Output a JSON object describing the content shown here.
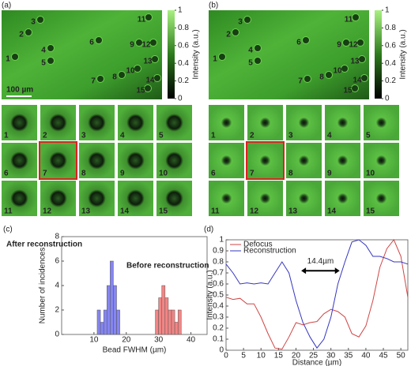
{
  "panel_a": {
    "label": "(a)",
    "bead_labels": [
      "1",
      "2",
      "3",
      "4",
      "5",
      "6",
      "7",
      "8",
      "9",
      "10",
      "11",
      "12",
      "13",
      "14",
      "15"
    ],
    "scale_bar": "100 µm",
    "colorbar": {
      "label": "Intensity (a.u.)",
      "ticks": [
        0,
        0.2,
        0.4,
        0.6,
        0.8,
        1
      ]
    },
    "tile_labels": [
      "1",
      "2",
      "3",
      "4",
      "5",
      "6",
      "7",
      "8",
      "9",
      "10",
      "11",
      "12",
      "13",
      "14",
      "15"
    ]
  },
  "panel_b": {
    "label": "(b)",
    "bead_labels": [
      "1",
      "2",
      "3",
      "4",
      "5",
      "6",
      "7",
      "8",
      "9",
      "10",
      "11",
      "12",
      "13",
      "14",
      "15"
    ],
    "colorbar": {
      "label": "Intensity (a.u.)",
      "ticks": [
        0,
        0.2,
        0.4,
        0.6,
        0.8,
        1
      ]
    },
    "tile_labels": [
      "1",
      "2",
      "3",
      "4",
      "5",
      "6",
      "7",
      "8",
      "9",
      "10",
      "11",
      "12",
      "13",
      "14",
      "15"
    ]
  },
  "chart_data": [
    {
      "type": "histogram",
      "panel_label": "(c)",
      "xlabel": "Bead FWHM (µm)",
      "ylabel": "Number of incidences",
      "xlim": [
        0,
        45
      ],
      "ylim": [
        0,
        8
      ],
      "xticks": [
        10,
        20,
        30,
        40
      ],
      "yticks": [
        0,
        2,
        4,
        6,
        8
      ],
      "series": [
        {
          "name": "After reconstruction",
          "color": "#8585f2",
          "label_color": "#4a72d4",
          "bins": [
            11,
            12,
            13,
            14,
            15,
            16,
            17,
            18
          ],
          "counts": [
            2,
            1,
            2,
            4,
            6,
            4,
            2
          ]
        },
        {
          "name": "Before reconstruction",
          "color": "#f28585",
          "label_color": "#e8232a",
          "bins": [
            29,
            30,
            31,
            32,
            33,
            34,
            35,
            36,
            37
          ],
          "counts": [
            2,
            3,
            4,
            3,
            2,
            2,
            1,
            2
          ]
        }
      ]
    },
    {
      "type": "line",
      "panel_label": "(d)",
      "xlabel": "Distance (µm)",
      "ylabel": "Intensity (a.u.)",
      "annotation": "14.4µm",
      "xlim": [
        0,
        52
      ],
      "ylim": [
        0,
        1
      ],
      "xticks": [
        0,
        5,
        10,
        15,
        20,
        25,
        30,
        35,
        40,
        45,
        50
      ],
      "yticks": [
        0,
        0.1,
        0.2,
        0.3,
        0.4,
        0.5,
        0.6,
        0.7,
        0.8,
        0.9,
        1
      ],
      "legend": "upper left",
      "x": [
        0,
        2,
        4,
        6,
        8,
        10,
        12,
        14,
        16,
        18,
        20,
        22,
        24,
        26,
        28,
        30,
        32,
        34,
        36,
        38,
        40,
        42,
        44,
        46,
        48,
        50,
        52
      ],
      "series": [
        {
          "name": "Defocus",
          "color": "#d04545",
          "values": [
            0.48,
            0.46,
            0.47,
            0.42,
            0.42,
            0.3,
            0.15,
            0.02,
            0.01,
            0.12,
            0.25,
            0.23,
            0.25,
            0.26,
            0.33,
            0.37,
            0.35,
            0.3,
            0.15,
            0.12,
            0.22,
            0.45,
            0.75,
            0.92,
            1.0,
            0.85,
            0.48
          ]
        },
        {
          "name": "Reconstruction",
          "color": "#3535c0",
          "values": [
            0.78,
            0.7,
            0.6,
            0.61,
            0.6,
            0.61,
            0.6,
            0.7,
            0.8,
            0.7,
            0.45,
            0.25,
            0.12,
            0.02,
            0.1,
            0.3,
            0.6,
            0.8,
            0.98,
            1.0,
            0.95,
            0.85,
            0.85,
            0.83,
            0.8,
            0.8,
            0.78
          ]
        }
      ]
    }
  ]
}
